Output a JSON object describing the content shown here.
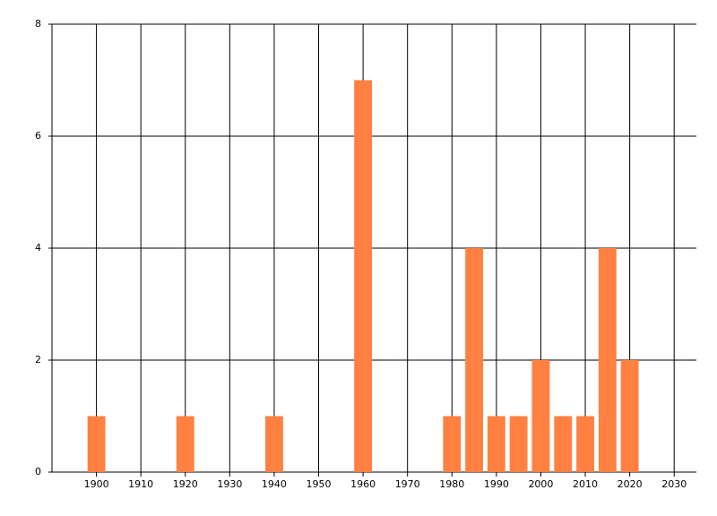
{
  "chart_data": {
    "type": "bar",
    "x": [
      1900,
      1920,
      1940,
      1960,
      1980,
      1985,
      1990,
      1995,
      2000,
      2005,
      2010,
      2015,
      2020
    ],
    "values": [
      1,
      1,
      1,
      7,
      1,
      4,
      1,
      1,
      2,
      1,
      1,
      4,
      2
    ],
    "color": "#ff8040",
    "xlim": [
      1890,
      2035
    ],
    "xticks": [
      1900,
      1910,
      1920,
      1930,
      1940,
      1950,
      1960,
      1970,
      1980,
      1990,
      2000,
      2010,
      2020,
      2030
    ],
    "ylim": [
      0,
      8
    ],
    "yticks": [
      0,
      2,
      4,
      6,
      8
    ],
    "grid": true
  }
}
